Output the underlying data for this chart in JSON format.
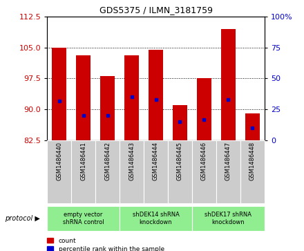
{
  "title": "GDS5375 / ILMN_3181759",
  "samples": [
    "GSM1486440",
    "GSM1486441",
    "GSM1486442",
    "GSM1486443",
    "GSM1486444",
    "GSM1486445",
    "GSM1486446",
    "GSM1486447",
    "GSM1486448"
  ],
  "count_values": [
    105.0,
    103.0,
    98.0,
    103.0,
    104.5,
    91.0,
    97.5,
    109.5,
    89.0
  ],
  "percentile_values": [
    32,
    20,
    20,
    35,
    33,
    15,
    17,
    33,
    10
  ],
  "ylim_left": [
    82.5,
    112.5
  ],
  "yticks_left": [
    82.5,
    90.0,
    97.5,
    105.0,
    112.5
  ],
  "ylim_right": [
    0,
    100
  ],
  "yticks_right": [
    0,
    25,
    50,
    75,
    100
  ],
  "bar_color": "#cc0000",
  "dot_color": "#0000cc",
  "bar_width": 0.6,
  "groups": [
    {
      "label": "empty vector\nshRNA control",
      "start": 0,
      "end": 3,
      "color": "#90ee90"
    },
    {
      "label": "shDEK14 shRNA\nknockdown",
      "start": 3,
      "end": 6,
      "color": "#90ee90"
    },
    {
      "label": "shDEK17 shRNA\nknockdown",
      "start": 6,
      "end": 9,
      "color": "#90ee90"
    }
  ],
  "protocol_label": "protocol",
  "legend_count_label": "count",
  "legend_percentile_label": "percentile rank within the sample",
  "background_color": "#ffffff",
  "tick_label_color_left": "#cc0000",
  "tick_label_color_right": "#0000cc",
  "sample_box_color": "#cccccc",
  "title_fontsize": 9,
  "axis_fontsize": 8,
  "label_fontsize": 7
}
